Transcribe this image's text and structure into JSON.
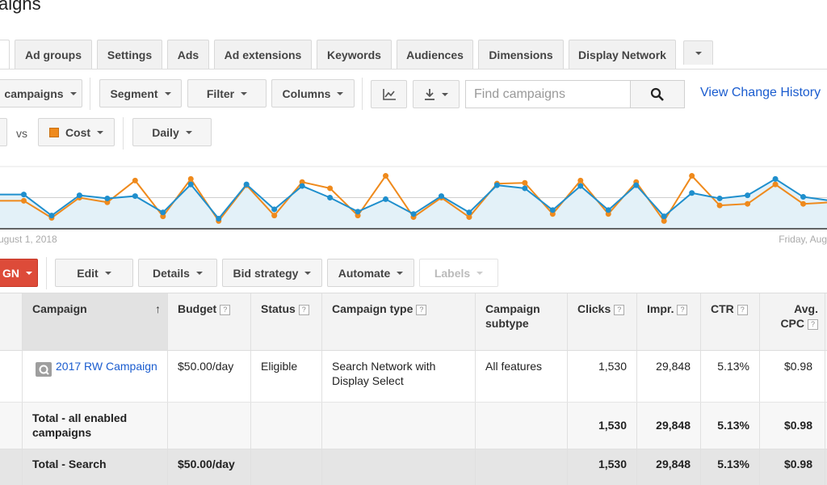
{
  "page": {
    "title": "aigns"
  },
  "tabs": [
    "Ad groups",
    "Settings",
    "Ads",
    "Ad extensions",
    "Keywords",
    "Audiences",
    "Dimensions",
    "Display Network"
  ],
  "toolbar": {
    "campaigns_filter": "campaigns",
    "segment": "Segment",
    "filter": "Filter",
    "columns": "Columns",
    "search_placeholder": "Find campaigns",
    "change_history": "View Change History"
  },
  "chart_controls": {
    "vs": "vs",
    "metric2": "Cost",
    "interval": "Daily"
  },
  "chart_data": {
    "type": "line",
    "series": [
      {
        "color": "#1f8fcd",
        "values": [
          44,
          44,
          17,
          43,
          39,
          42,
          21,
          57,
          13,
          57,
          25,
          55,
          40,
          22,
          38,
          19,
          42,
          21,
          56,
          52,
          24,
          55,
          24,
          56,
          16,
          46,
          39,
          43,
          64,
          41,
          36
        ]
      },
      {
        "color": "#ef8a1c",
        "values": [
          36,
          36,
          14,
          40,
          34,
          62,
          16,
          64,
          10,
          56,
          17,
          60,
          52,
          17,
          68,
          15,
          40,
          15,
          58,
          59,
          19,
          62,
          19,
          60,
          10,
          68,
          30,
          32,
          57,
          32,
          34
        ]
      }
    ],
    "ylim": [
      0,
      80
    ],
    "x_start_label": "ugust 1, 2018",
    "x_end_label": "Friday, Aug"
  },
  "actions": {
    "new_campaign": "GN",
    "edit": "Edit",
    "details": "Details",
    "bid_strategy": "Bid strategy",
    "automate": "Automate",
    "labels": "Labels"
  },
  "table": {
    "headers": {
      "campaign": "Campaign",
      "budget": "Budget",
      "status": "Status",
      "type": "Campaign type",
      "subtype": "Campaign subtype",
      "clicks": "Clicks",
      "impr": "Impr.",
      "ctr": "CTR",
      "cpc": "Avg. CPC"
    },
    "help_mark": "?",
    "rows": [
      {
        "campaign": "2017 RW Campaign",
        "budget": "$50.00/day",
        "status": "Eligible",
        "type": "Search Network with Display Select",
        "subtype": "All features",
        "clicks": "1,530",
        "impr": "29,848",
        "ctr": "5.13%",
        "cpc": "$0.98"
      }
    ],
    "total_enabled": {
      "label": "Total - all enabled campaigns",
      "clicks": "1,530",
      "impr": "29,848",
      "ctr": "5.13%",
      "cpc": "$0.98"
    },
    "total_search": {
      "label": "Total - Search",
      "budget": "$50.00/day",
      "clicks": "1,530",
      "impr": "29,848",
      "ctr": "5.13%",
      "cpc": "$0.98"
    }
  }
}
